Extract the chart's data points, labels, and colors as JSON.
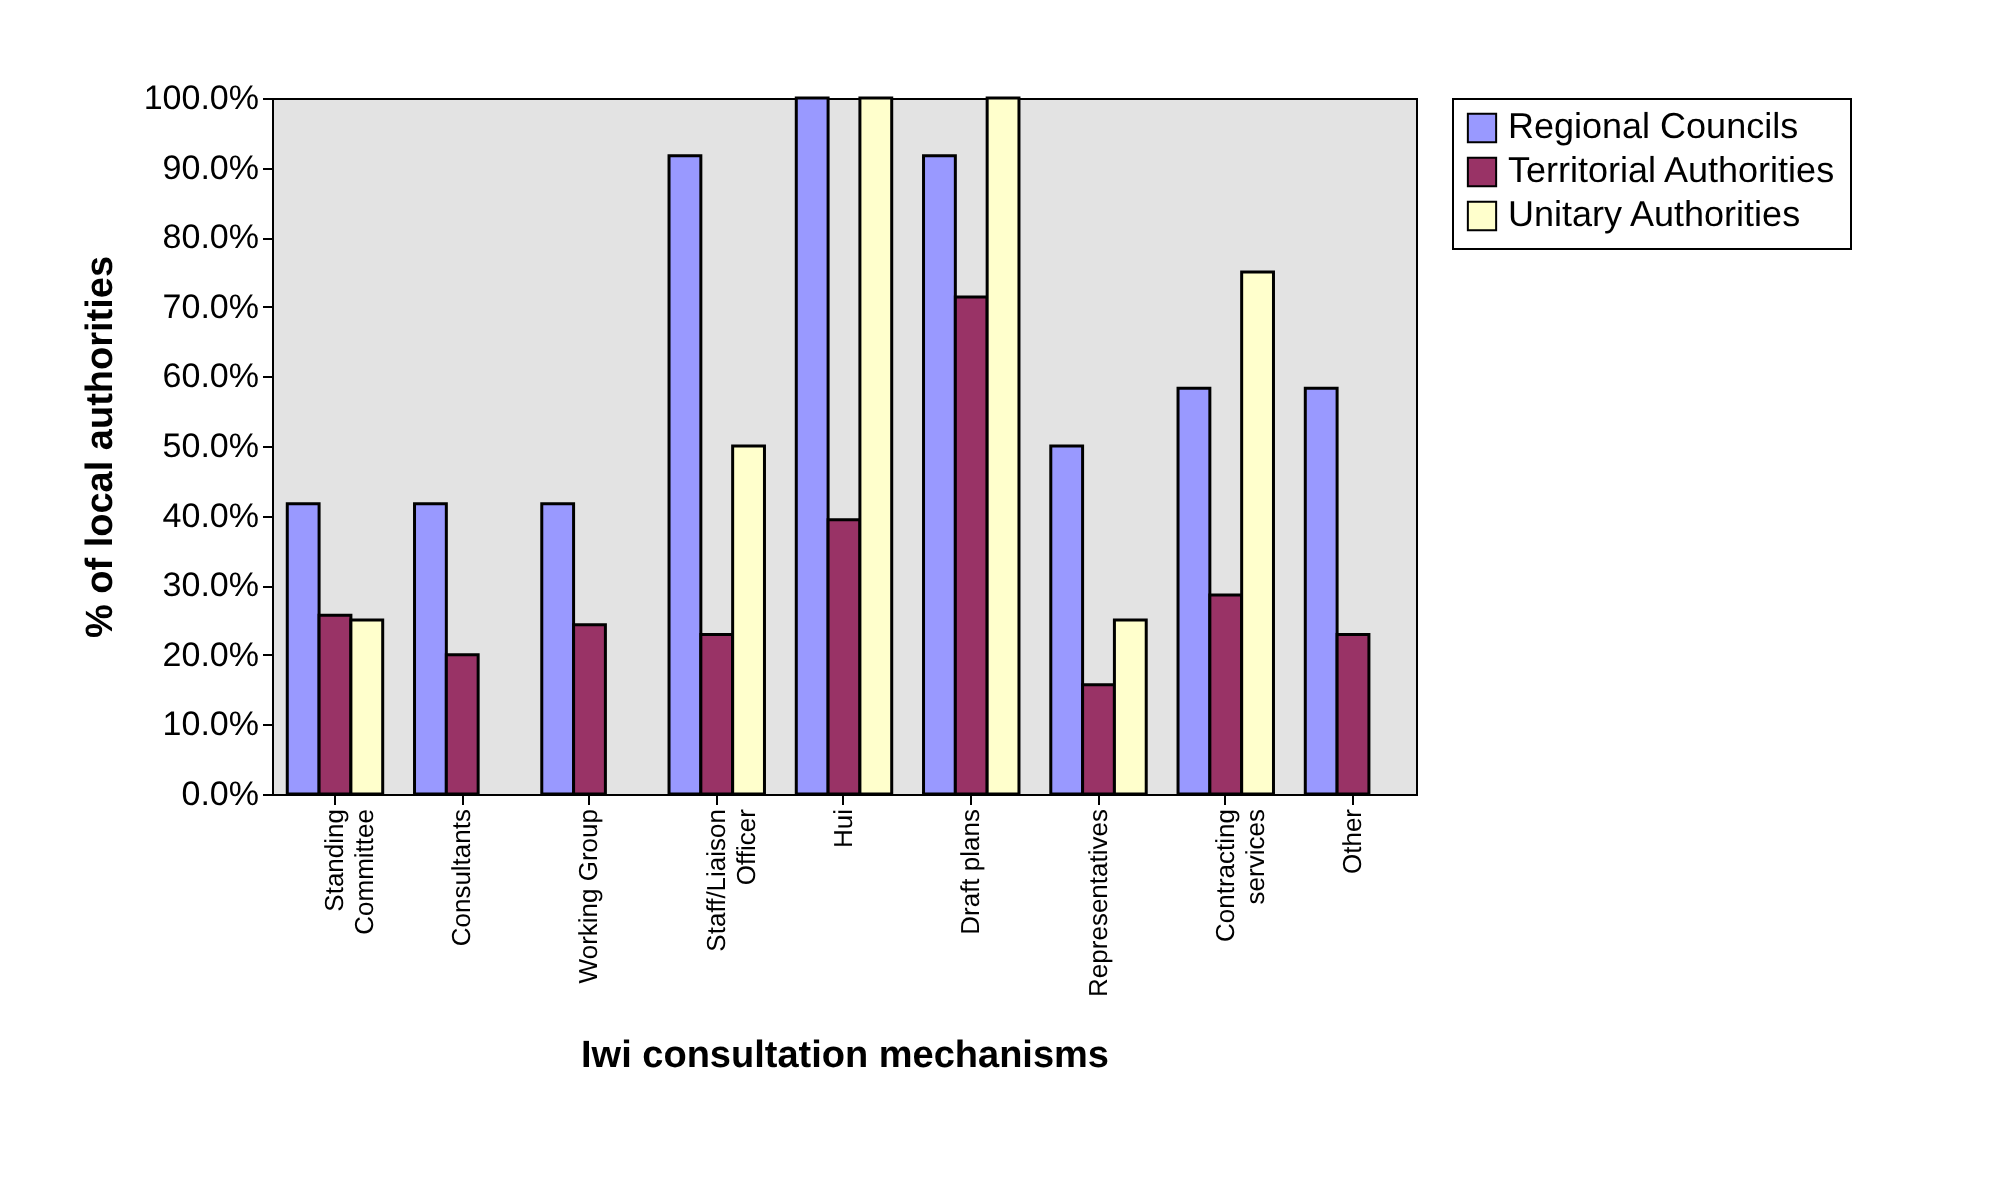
{
  "chart_data": {
    "type": "bar",
    "xlabel": "Iwi consultation mechanisms",
    "ylabel": "% of local authorities",
    "categories": [
      "Standing\nCommittee",
      "Consultants",
      "Working Group",
      "Staff/Liaison\nOfficer",
      "Hui",
      "Draft plans",
      "Representatives",
      "Contracting\nservices",
      "Other"
    ],
    "series": [
      {
        "name": "Regional Councils",
        "color": "#9999ff",
        "values": [
          41.7,
          41.7,
          41.7,
          91.7,
          100,
          91.7,
          50,
          58.3,
          58.3
        ]
      },
      {
        "name": "Territorial Authorities",
        "color": "#993366",
        "values": [
          25.7,
          20,
          24.3,
          22.9,
          39.4,
          71.4,
          15.7,
          28.6,
          22.9
        ]
      },
      {
        "name": "Unitary Authorities",
        "color": "#ffffcc",
        "values": [
          25,
          null,
          null,
          50,
          100,
          100,
          25,
          75,
          null
        ]
      }
    ],
    "ylim": [
      0,
      100
    ],
    "yticks": [
      {
        "value": 0,
        "label": "0.0%"
      },
      {
        "value": 10,
        "label": "10.0%"
      },
      {
        "value": 20,
        "label": "20.0%"
      },
      {
        "value": 30,
        "label": "30.0%"
      },
      {
        "value": 40,
        "label": "40.0%"
      },
      {
        "value": 50,
        "label": "50.0%"
      },
      {
        "value": 60,
        "label": "60.0%"
      },
      {
        "value": 70,
        "label": "70.0%"
      },
      {
        "value": 80,
        "label": "80.0%"
      },
      {
        "value": 90,
        "label": "90.0%"
      },
      {
        "value": 100,
        "label": "100.0%"
      }
    ],
    "grid": false,
    "legend": "right"
  }
}
